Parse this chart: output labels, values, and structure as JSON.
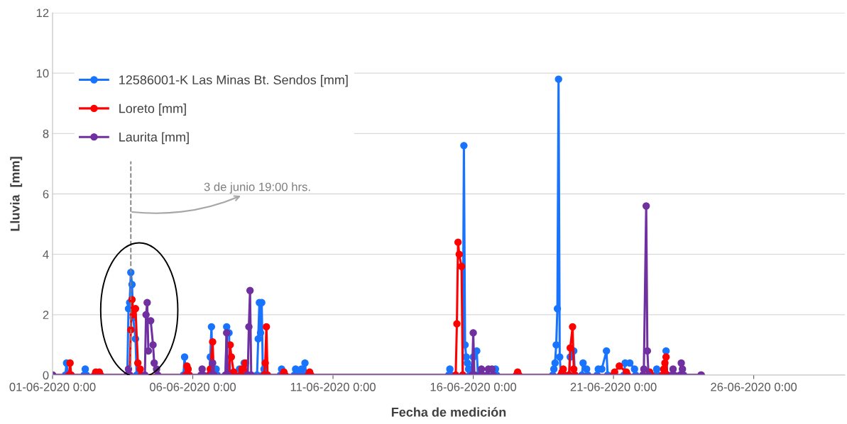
{
  "chart_data": {
    "type": "line",
    "xlabel": "Fecha de medición",
    "ylabel": "Lluvia  [mm]",
    "xlim": [
      "2020-06-01",
      "2020-06-29T06:00"
    ],
    "xticks": [
      {
        "value": "2020-06-01",
        "label": "01-06-2020 0:00"
      },
      {
        "value": "2020-06-06",
        "label": "06-06-2020 0:00"
      },
      {
        "value": "2020-06-11",
        "label": "11-06-2020 0:00"
      },
      {
        "value": "2020-06-16",
        "label": "16-06-2020 0:00"
      },
      {
        "value": "2020-06-21",
        "label": "21-06-2020 0:00"
      },
      {
        "value": "2020-06-26",
        "label": "26-06-2020 0:00"
      }
    ],
    "ylim": [
      0,
      12
    ],
    "yticks": [
      0,
      2,
      4,
      6,
      8,
      10,
      12
    ],
    "grid": "y",
    "legend": "top left",
    "marker": "circle",
    "line_style": "solid",
    "ref_lines": [
      {
        "axis": "x",
        "value": "2020-06-03T19:00",
        "label": "3 de junio 19:00 hrs.",
        "color": "#7f7f7f",
        "line_style": "dashed"
      }
    ],
    "series": [
      {
        "name": "12586001-K Las Minas Bt. Sendos [mm]",
        "color": "#1874ff",
        "x": [
          "2020-06-01T00:00",
          "2020-06-01T11:00",
          "2020-06-01T12:00",
          "2020-06-01T13:00",
          "2020-06-02T03:00",
          "2020-06-02T04:00",
          "2020-06-02T05:00",
          "2020-06-03T16:00",
          "2020-06-03T17:00",
          "2020-06-03T18:00",
          "2020-06-03T19:00",
          "2020-06-03T20:00",
          "2020-06-03T21:00",
          "2020-06-03T23:00",
          "2020-06-04T00:00",
          "2020-06-05T16:00",
          "2020-06-05T17:00",
          "2020-06-05T18:00",
          "2020-06-06T14:00",
          "2020-06-06T15:00",
          "2020-06-06T16:00",
          "2020-06-06T17:00",
          "2020-06-06T20:00",
          "2020-06-06T21:00",
          "2020-06-07T04:00",
          "2020-06-07T05:00",
          "2020-06-07T07:00",
          "2020-06-07T08:00",
          "2020-06-07T16:00",
          "2020-06-07T17:00",
          "2020-06-07T20:00",
          "2020-06-07T21:00",
          "2020-06-08T07:00",
          "2020-06-08T08:00",
          "2020-06-08T09:00",
          "2020-06-08T10:00",
          "2020-06-08T11:00",
          "2020-06-08T12:00",
          "2020-06-08T13:00",
          "2020-06-08T14:00",
          "2020-06-09T03:00",
          "2020-06-09T04:00",
          "2020-06-09T05:00",
          "2020-06-09T15:00",
          "2020-06-09T16:00",
          "2020-06-09T17:00",
          "2020-06-09T21:00",
          "2020-06-09T22:00",
          "2020-06-10T00:00",
          "2020-06-10T01:00",
          "2020-06-15T03:00",
          "2020-06-15T04:00",
          "2020-06-15T05:00",
          "2020-06-15T15:00",
          "2020-06-15T16:00",
          "2020-06-15T17:00",
          "2020-06-15T18:00",
          "2020-06-15T19:00",
          "2020-06-15T20:00",
          "2020-06-15T21:00",
          "2020-06-16T00:00",
          "2020-06-16T03:00",
          "2020-06-16T04:00",
          "2020-06-16T18:00",
          "2020-06-16T19:00",
          "2020-06-16T20:00",
          "2020-06-18T20:00",
          "2020-06-18T21:00",
          "2020-06-18T22:00",
          "2020-06-18T23:00",
          "2020-06-19T00:00",
          "2020-06-19T01:00",
          "2020-06-19T02:00",
          "2020-06-19T03:00",
          "2020-06-19T10:00",
          "2020-06-19T11:00",
          "2020-06-19T14:00",
          "2020-06-19T15:00",
          "2020-06-19T21:00",
          "2020-06-19T22:00",
          "2020-06-20T01:00",
          "2020-06-20T02:00",
          "2020-06-20T10:00",
          "2020-06-20T11:00",
          "2020-06-20T14:00",
          "2020-06-20T18:00",
          "2020-06-20T19:00",
          "2020-06-21T09:00",
          "2020-06-21T10:00",
          "2020-06-21T14:00",
          "2020-06-21T18:00",
          "2020-06-21T19:00",
          "2020-06-22T12:00",
          "2020-06-22T13:00",
          "2020-06-22T14:00",
          "2020-06-22T20:00",
          "2020-06-22T21:00",
          "2020-06-22T22:00",
          "2020-06-24T03:00"
        ],
        "values": [
          0,
          0,
          0.4,
          0,
          0,
          0.2,
          0,
          0,
          2.2,
          2.4,
          3.4,
          3.0,
          1.9,
          1.2,
          0,
          0,
          0.6,
          0,
          0,
          0.6,
          1.6,
          0,
          0.2,
          0,
          0,
          1.6,
          1.4,
          0,
          0.2,
          0,
          0.4,
          0,
          0,
          1.2,
          2.4,
          1.4,
          2.4,
          0,
          0.2,
          0,
          0,
          0.2,
          0,
          0,
          0.2,
          0,
          0.2,
          0,
          0.4,
          0,
          0,
          0.2,
          0,
          0,
          7.6,
          1.0,
          0.6,
          0.4,
          0.2,
          0,
          0.6,
          0.8,
          0,
          0,
          0.2,
          0,
          0,
          0.2,
          0.4,
          1.0,
          2.2,
          9.8,
          0.6,
          0,
          0,
          0.6,
          0.8,
          0,
          0,
          0.4,
          0.2,
          0,
          0,
          0.2,
          0.2,
          0.8,
          0,
          0,
          0.4,
          0.4,
          0.2,
          0,
          0,
          0.2,
          0,
          0,
          0.8,
          0,
          0
        ]
      },
      {
        "name": "Loreto [mm]",
        "color": "#ff0000",
        "x": [
          "2020-06-01T00:00",
          "2020-06-01T14:00",
          "2020-06-01T15:00",
          "2020-06-01T16:00",
          "2020-06-02T12:00",
          "2020-06-02T13:00",
          "2020-06-02T16:00",
          "2020-06-02T17:00",
          "2020-06-03T18:00",
          "2020-06-03T19:00",
          "2020-06-03T20:00",
          "2020-06-03T21:00",
          "2020-06-03T23:00",
          "2020-06-04T01:00",
          "2020-06-04T03:00",
          "2020-06-04T04:00",
          "2020-06-05T18:00",
          "2020-06-05T19:00",
          "2020-06-05T20:00",
          "2020-06-05T21:00",
          "2020-06-06T14:00",
          "2020-06-06T15:00",
          "2020-06-06T17:00",
          "2020-06-06T18:00",
          "2020-06-07T07:00",
          "2020-06-07T08:00",
          "2020-06-07T09:00",
          "2020-06-07T11:00",
          "2020-06-07T12:00",
          "2020-06-07T17:00",
          "2020-06-07T18:00",
          "2020-06-07T21:00",
          "2020-06-07T22:00",
          "2020-06-08T13:00",
          "2020-06-08T14:00",
          "2020-06-08T15:00",
          "2020-06-08T16:00",
          "2020-06-09T05:00",
          "2020-06-09T06:00",
          "2020-06-09T07:00",
          "2020-06-10T03:00",
          "2020-06-10T04:00",
          "2020-06-10T05:00",
          "2020-06-15T09:00",
          "2020-06-15T10:00",
          "2020-06-15T11:00",
          "2020-06-15T12:00",
          "2020-06-15T14:00",
          "2020-06-15T15:00",
          "2020-06-17T13:00",
          "2020-06-17T14:00",
          "2020-06-17T15:00",
          "2020-06-19T03:00",
          "2020-06-19T04:00",
          "2020-06-19T05:00",
          "2020-06-19T06:00",
          "2020-06-19T10:00",
          "2020-06-19T11:00",
          "2020-06-19T13:00",
          "2020-06-19T14:00",
          "2020-06-19T15:00",
          "2020-06-21T00:00",
          "2020-06-21T01:00",
          "2020-06-21T05:00",
          "2020-06-21T11:00",
          "2020-06-21T12:00",
          "2020-06-22T06:00",
          "2020-06-22T07:00",
          "2020-06-22T08:00",
          "2020-06-22T18:00",
          "2020-06-22T19:00",
          "2020-06-22T20:00",
          "2020-06-22T21:00",
          "2020-06-22T22:00",
          "2020-06-24T03:00"
        ],
        "values": [
          0,
          0,
          0.4,
          0,
          0,
          0.1,
          0.1,
          0,
          0,
          1.5,
          2.5,
          2.0,
          2.2,
          0.4,
          0.2,
          0,
          0,
          0.3,
          0.2,
          0,
          0,
          0.2,
          1.1,
          0,
          0,
          1.0,
          0.6,
          0.1,
          0,
          0,
          0.2,
          0.4,
          0,
          0,
          0.4,
          1.6,
          0,
          0,
          0.1,
          0,
          0,
          0.1,
          0,
          0,
          1.7,
          4.4,
          4.0,
          3.6,
          0,
          0,
          0.1,
          0,
          0,
          0.1,
          0.2,
          0,
          0,
          0.9,
          1.6,
          0.2,
          0,
          0,
          0.1,
          0.3,
          0.1,
          0,
          0,
          0.1,
          0,
          0,
          0.2,
          0.4,
          0.6,
          0,
          0
        ]
      },
      {
        "name": "Laurita [mm]",
        "color": "#7030a0",
        "x": [
          "2020-06-01T00:00",
          "2020-06-03T16:00",
          "2020-06-03T17:00",
          "2020-06-03T18:00",
          "2020-06-04T07:00",
          "2020-06-04T08:00",
          "2020-06-04T09:00",
          "2020-06-04T10:00",
          "2020-06-04T11:00",
          "2020-06-04T12:00",
          "2020-06-04T14:00",
          "2020-06-04T15:00",
          "2020-06-04T17:00",
          "2020-06-04T18:00",
          "2020-06-06T07:00",
          "2020-06-06T08:00",
          "2020-06-06T09:00",
          "2020-06-06T16:00",
          "2020-06-06T17:00",
          "2020-06-06T18:00",
          "2020-06-07T04:00",
          "2020-06-07T05:00",
          "2020-06-07T06:00",
          "2020-06-07T23:00",
          "2020-06-08T00:00",
          "2020-06-08T01:00",
          "2020-06-08T02:00",
          "2020-06-15T23:00",
          "2020-06-16T00:00",
          "2020-06-16T01:00",
          "2020-06-16T06:00",
          "2020-06-16T07:00",
          "2020-06-16T08:00",
          "2020-06-16T12:00",
          "2020-06-16T13:00",
          "2020-06-16T16:00",
          "2020-06-16T17:00",
          "2020-06-22T01:00",
          "2020-06-22T02:00",
          "2020-06-22T04:00",
          "2020-06-22T05:00",
          "2020-06-22T06:00",
          "2020-06-23T02:00",
          "2020-06-23T03:00",
          "2020-06-23T04:00",
          "2020-06-23T09:00",
          "2020-06-23T10:00",
          "2020-06-23T11:00",
          "2020-06-23T12:00",
          "2020-06-24T03:00"
        ],
        "values": [
          0,
          0,
          0.2,
          0,
          0,
          2.0,
          2.4,
          0.8,
          null,
          1.8,
          1.0,
          0.4,
          0.2,
          0,
          0,
          0.2,
          0,
          0,
          0.4,
          0,
          0,
          1.4,
          0,
          0,
          1.6,
          2.8,
          0,
          0,
          1.4,
          0,
          0,
          0.2,
          0,
          0,
          0.2,
          0.2,
          0,
          0,
          0.2,
          5.6,
          0.8,
          0,
          0,
          0.2,
          0,
          0,
          0.4,
          0.2,
          0,
          0
        ]
      }
    ]
  }
}
